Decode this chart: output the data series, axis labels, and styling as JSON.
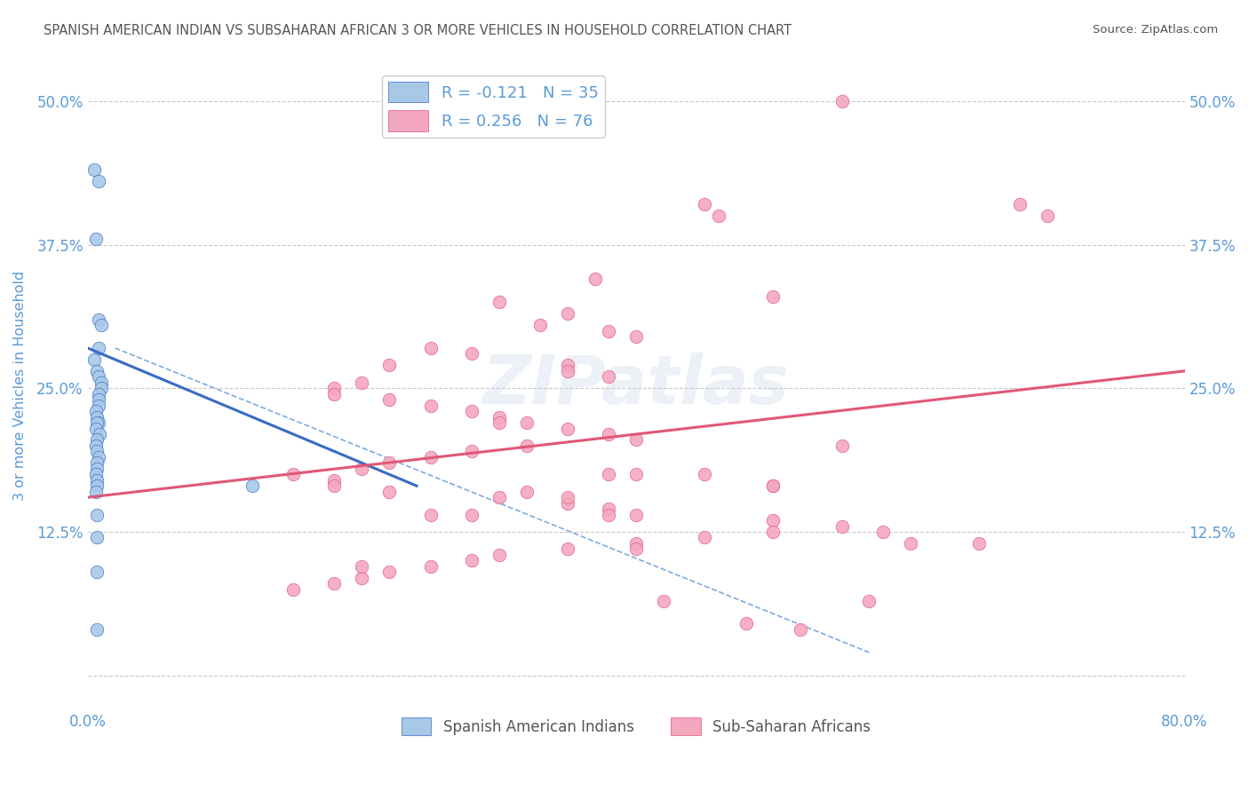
{
  "title": "SPANISH AMERICAN INDIAN VS SUBSAHARAN AFRICAN 3 OR MORE VEHICLES IN HOUSEHOLD CORRELATION CHART",
  "source": "Source: ZipAtlas.com",
  "ylabel": "3 or more Vehicles in Household",
  "xmin": 0.0,
  "xmax": 0.8,
  "ymin": -0.03,
  "ymax": 0.535,
  "yticks": [
    0.0,
    0.125,
    0.25,
    0.375,
    0.5
  ],
  "ytick_labels": [
    "",
    "12.5%",
    "25.0%",
    "37.5%",
    "50.0%"
  ],
  "xticks": [
    0.0,
    0.1,
    0.2,
    0.3,
    0.4,
    0.5,
    0.6,
    0.7,
    0.8
  ],
  "xtick_labels": [
    "0.0%",
    "",
    "",
    "",
    "",
    "",
    "",
    "",
    "80.0%"
  ],
  "blue_color": "#A8C8E8",
  "pink_color": "#F4A8C0",
  "blue_line_color": "#3A6BC4",
  "pink_line_color": "#E05878",
  "legend_blue_r": "R = -0.121",
  "legend_blue_n": "N = 35",
  "legend_pink_r": "R = 0.256",
  "legend_pink_n": "N = 76",
  "title_color": "#555555",
  "axis_label_color": "#5B9BD5",
  "grid_color": "#C8C8C8",
  "blue_scatter_x": [
    0.005,
    0.008,
    0.006,
    0.008,
    0.01,
    0.008,
    0.005,
    0.007,
    0.008,
    0.01,
    0.01,
    0.008,
    0.008,
    0.008,
    0.006,
    0.007,
    0.008,
    0.007,
    0.006,
    0.009,
    0.007,
    0.006,
    0.007,
    0.008,
    0.007,
    0.007,
    0.006,
    0.007,
    0.007,
    0.12,
    0.006,
    0.007,
    0.007,
    0.007,
    0.007
  ],
  "blue_scatter_y": [
    0.44,
    0.43,
    0.38,
    0.31,
    0.305,
    0.285,
    0.275,
    0.265,
    0.26,
    0.255,
    0.25,
    0.245,
    0.24,
    0.235,
    0.23,
    0.225,
    0.22,
    0.22,
    0.215,
    0.21,
    0.205,
    0.2,
    0.195,
    0.19,
    0.185,
    0.18,
    0.175,
    0.17,
    0.165,
    0.165,
    0.16,
    0.14,
    0.12,
    0.09,
    0.04
  ],
  "pink_scatter_x": [
    0.55,
    0.68,
    0.7,
    0.45,
    0.46,
    0.37,
    0.5,
    0.3,
    0.35,
    0.33,
    0.38,
    0.4,
    0.25,
    0.28,
    0.22,
    0.35,
    0.35,
    0.38,
    0.2,
    0.18,
    0.18,
    0.22,
    0.25,
    0.28,
    0.3,
    0.3,
    0.32,
    0.35,
    0.38,
    0.4,
    0.32,
    0.28,
    0.25,
    0.22,
    0.2,
    0.15,
    0.18,
    0.18,
    0.22,
    0.3,
    0.35,
    0.38,
    0.4,
    0.5,
    0.55,
    0.5,
    0.45,
    0.4,
    0.35,
    0.3,
    0.28,
    0.25,
    0.22,
    0.2,
    0.18,
    0.15,
    0.35,
    0.38,
    0.4,
    0.45,
    0.5,
    0.55,
    0.2,
    0.4,
    0.6,
    0.25,
    0.28,
    0.32,
    0.38,
    0.5,
    0.58,
    0.65,
    0.48,
    0.52,
    0.42,
    0.57
  ],
  "pink_scatter_y": [
    0.5,
    0.41,
    0.4,
    0.41,
    0.4,
    0.345,
    0.33,
    0.325,
    0.315,
    0.305,
    0.3,
    0.295,
    0.285,
    0.28,
    0.27,
    0.27,
    0.265,
    0.26,
    0.255,
    0.25,
    0.245,
    0.24,
    0.235,
    0.23,
    0.225,
    0.22,
    0.22,
    0.215,
    0.21,
    0.205,
    0.2,
    0.195,
    0.19,
    0.185,
    0.18,
    0.175,
    0.17,
    0.165,
    0.16,
    0.155,
    0.15,
    0.145,
    0.14,
    0.135,
    0.13,
    0.125,
    0.12,
    0.115,
    0.11,
    0.105,
    0.1,
    0.095,
    0.09,
    0.085,
    0.08,
    0.075,
    0.155,
    0.14,
    0.175,
    0.175,
    0.165,
    0.2,
    0.095,
    0.11,
    0.115,
    0.14,
    0.14,
    0.16,
    0.175,
    0.165,
    0.125,
    0.115,
    0.045,
    0.04,
    0.065,
    0.065
  ],
  "background_color": "#FFFFFF",
  "watermark_text": "ZIPatlas",
  "blue_trend_x": [
    0.0,
    0.24
  ],
  "blue_trend_y": [
    0.285,
    0.165
  ],
  "pink_trend_x": [
    0.0,
    0.8
  ],
  "pink_trend_y": [
    0.155,
    0.265
  ],
  "diag_line_x": [
    0.02,
    0.57
  ],
  "diag_line_y": [
    0.285,
    0.02
  ]
}
